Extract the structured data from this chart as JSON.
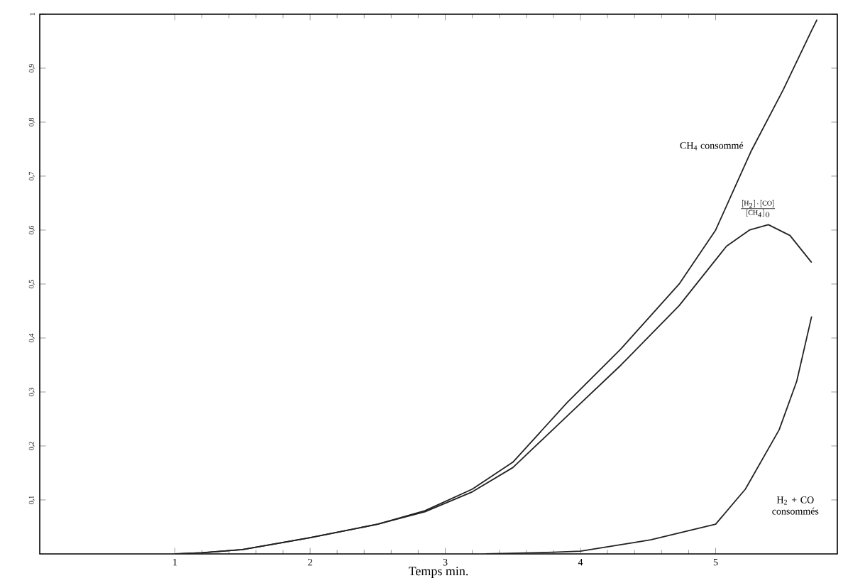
{
  "chart_data": {
    "type": "line",
    "xlabel": "Temps min.",
    "xlim": [
      0,
      5.9
    ],
    "ylim": [
      0,
      1
    ],
    "xticks": [
      1,
      2,
      3,
      4,
      5
    ],
    "yticks": [
      {
        "value": 0.1,
        "label": "0,1"
      },
      {
        "value": 0.2,
        "label": "0,2"
      },
      {
        "value": 0.3,
        "label": "0,3"
      },
      {
        "value": 0.4,
        "label": "0,4"
      },
      {
        "value": 0.5,
        "label": "0,5"
      },
      {
        "value": 0.6,
        "label": "0,6"
      },
      {
        "value": 0.7,
        "label": "0,7"
      },
      {
        "value": 0.8,
        "label": "0,8"
      },
      {
        "value": 0.9,
        "label": "0,9"
      },
      1
    ],
    "grid": false,
    "legend": false,
    "marker": "none",
    "line_style": "solid",
    "series": [
      {
        "name": "CH$_{4}$ consommé",
        "color": "#222222",
        "x": [
          1.0,
          1.2,
          1.5,
          2.0,
          2.5,
          2.85,
          3.2,
          3.5,
          3.9,
          4.3,
          4.73,
          5.0,
          5.26,
          5.5,
          5.71,
          5.75
        ],
        "values": [
          0,
          0.002,
          0.008,
          0.03,
          0.055,
          0.08,
          0.12,
          0.17,
          0.28,
          0.38,
          0.5,
          0.6,
          0.745,
          0.86,
          0.97,
          0.99
        ]
      },
      {
        "name": "\\frac{[\\mathrm{H_2}]\\cdot[\\mathrm{CO}]}{[\\mathrm{CH_4}]_0}",
        "color": "#222222",
        "x": [
          1.0,
          1.2,
          1.5,
          2.0,
          2.5,
          2.85,
          3.2,
          3.5,
          3.9,
          4.3,
          4.73,
          5.08,
          5.25,
          5.39,
          5.55,
          5.71
        ],
        "values": [
          0,
          0.002,
          0.008,
          0.03,
          0.055,
          0.078,
          0.115,
          0.16,
          0.255,
          0.35,
          0.46,
          0.57,
          0.6,
          0.61,
          0.59,
          0.54
        ]
      },
      {
        "name": "H$_{2}$ + CO consommés",
        "color": "#222222",
        "x": [
          3.3,
          3.8,
          4.0,
          4.52,
          5.0,
          5.22,
          5.47,
          5.6,
          5.71
        ],
        "values": [
          0,
          0.003,
          0.005,
          0.026,
          0.055,
          0.12,
          0.23,
          0.32,
          0.44
        ]
      }
    ]
  }
}
